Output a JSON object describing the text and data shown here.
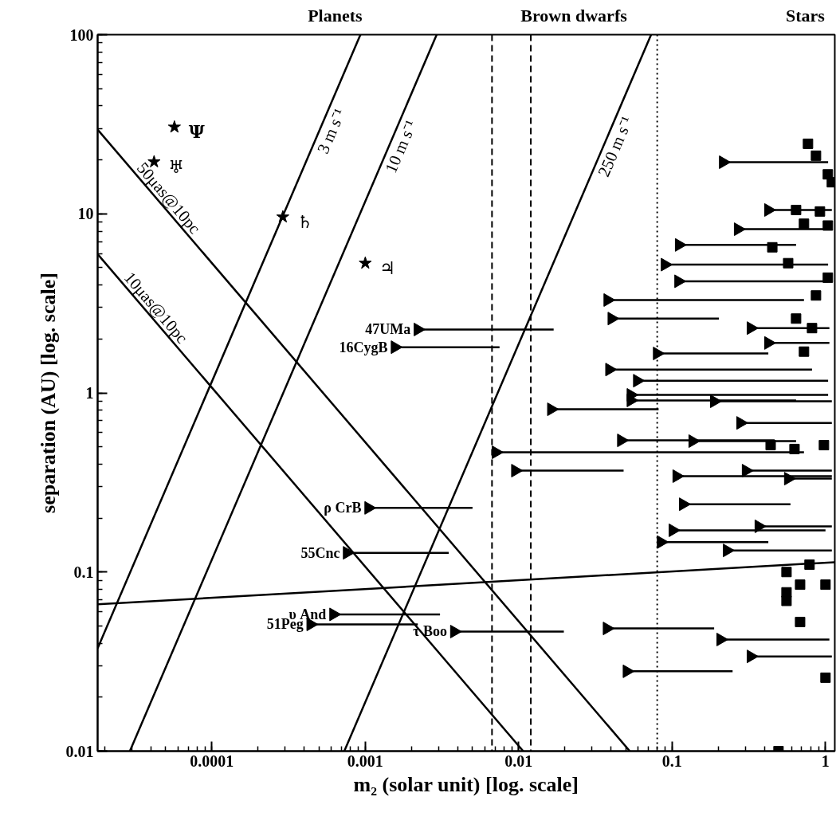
{
  "chart_data": {
    "type": "scatter",
    "xlabel": "m₂ (solar unit) [log. scale]",
    "ylabel": "separation (AU) [log. scale]",
    "log": "xy",
    "grid": false,
    "xlim": [
      1.8e-05,
      1.15
    ],
    "ylim": [
      0.01,
      100
    ],
    "xticks": [
      0.0001,
      0.001,
      0.01,
      0.1,
      1
    ],
    "yticks": [
      0.01,
      0.1,
      1,
      10,
      100
    ],
    "series": [
      {
        "name": "♅",
        "color": "#000000",
        "marker": "star",
        "x": [
          4.2e-05
        ],
        "values": [
          19.5
        ]
      },
      {
        "name": "Ψ",
        "color": "#000000",
        "marker": "star",
        "x": [
          5.7e-05
        ],
        "values": [
          30.5
        ]
      },
      {
        "name": "♄",
        "color": "#000000",
        "marker": "star",
        "x": [
          0.00029
        ],
        "values": [
          9.6
        ]
      },
      {
        "name": "♃",
        "color": "#000000",
        "marker": "star",
        "x": [
          0.001
        ],
        "values": [
          5.3
        ]
      },
      {
        "name": "3 m s⁻¹",
        "type": "line",
        "color": "#000000",
        "x": [
          1.8e-05,
          0.00093
        ],
        "values": [
          0.0375,
          100
        ]
      },
      {
        "name": "10 m s⁻¹",
        "type": "line",
        "color": "#000000",
        "x": [
          2.92e-05,
          0.00292
        ],
        "values": [
          0.01,
          100
        ]
      },
      {
        "name": "250 m s⁻¹",
        "type": "line",
        "color": "#000000",
        "x": [
          0.00073,
          0.073
        ],
        "values": [
          0.01,
          100
        ]
      },
      {
        "name": "50μas@10pc",
        "type": "line",
        "color": "#000000",
        "x": [
          1.8e-05,
          0.053
        ],
        "values": [
          29.5,
          0.01
        ]
      },
      {
        "name": "10μas@10pc",
        "type": "line",
        "color": "#000000",
        "x": [
          1.8e-05,
          0.0107
        ],
        "values": [
          5.95,
          0.01
        ]
      },
      {
        "type": "line",
        "color": "#000000",
        "x": [
          1.8e-05,
          1.15
        ],
        "values": [
          0.066,
          0.1135
        ]
      },
      {
        "color": "#000000",
        "marker": "triangle",
        "x": [
          0.0022,
          0.00156,
          0.00105,
          0.00076,
          0.00062,
          0.00044,
          0.0038
        ],
        "values": [
          2.26,
          1.8,
          0.228,
          0.128,
          0.058,
          0.051,
          0.0465
        ],
        "xerrors": [
          [
            0.0022,
            0.0169
          ],
          [
            0.00156,
            0.0075
          ],
          [
            0.00105,
            0.005
          ],
          [
            0.00076,
            0.0035
          ],
          [
            0.00062,
            0.00307
          ],
          [
            0.00044,
            0.0022
          ],
          [
            0.0038,
            0.0197
          ]
        ]
      },
      {
        "color": "#000000",
        "marker": "triangle",
        "x": [
          0.215,
          0.424,
          0.269,
          0.111,
          0.0898,
          0.11,
          0.038,
          0.0404,
          0.326,
          0.424,
          0.0798,
          0.039,
          0.0592,
          0.0538,
          0.0163,
          0.0538,
          0.188,
          0.279,
          0.0466,
          0.136,
          0.0071,
          0.0095,
          0.107,
          0.303,
          0.571,
          0.118,
          0.101,
          0.0846,
          0.367,
          0.228,
          0.0376,
          0.207,
          0.326,
          0.0507
        ],
        "values": [
          19.4,
          10.5,
          8.2,
          6.7,
          5.2,
          4.2,
          3.3,
          2.6,
          2.3,
          1.9,
          1.66,
          1.35,
          1.17,
          0.975,
          0.81,
          0.908,
          0.898,
          0.68,
          0.543,
          0.538,
          0.466,
          0.368,
          0.343,
          0.368,
          0.332,
          0.239,
          0.171,
          0.147,
          0.18,
          0.132,
          0.0484,
          0.042,
          0.0338,
          0.0279
        ],
        "xerrors": [
          [
            0.215,
            1.04
          ],
          [
            0.424,
            1.1
          ],
          [
            0.269,
            1.04
          ],
          [
            0.111,
            0.643
          ],
          [
            0.0898,
            1.04
          ],
          [
            0.11,
            1.04
          ],
          [
            0.038,
            0.724
          ],
          [
            0.0404,
            0.202
          ],
          [
            0.326,
            1.06
          ],
          [
            0.424,
            1.06
          ],
          [
            0.0798,
            0.424
          ],
          [
            0.039,
            0.817
          ],
          [
            0.0592,
            1.04
          ],
          [
            0.0538,
            1.04
          ],
          [
            0.0163,
            0.0817
          ],
          [
            0.0538,
            0.643
          ],
          [
            0.188,
            1.1
          ],
          [
            0.279,
            1.1
          ],
          [
            0.0466,
            0.466
          ],
          [
            0.136,
            0.643
          ],
          [
            0.0071,
            0.724
          ],
          [
            0.0095,
            0.0483
          ],
          [
            0.107,
            1.1
          ],
          [
            0.303,
            1.1
          ],
          [
            0.571,
            1.1
          ],
          [
            0.118,
            0.591
          ],
          [
            0.101,
            1.0
          ],
          [
            0.0846,
            0.424
          ],
          [
            0.367,
            1.1
          ],
          [
            0.228,
            1.1
          ],
          [
            0.0376,
            0.188
          ],
          [
            0.207,
            1.06
          ],
          [
            0.326,
            1.1
          ],
          [
            0.0507,
            0.248
          ]
        ]
      },
      {
        "color": "#000000",
        "marker": "square",
        "x": [
          0.769,
          0.867,
          1.036,
          1.1,
          0.643,
          0.92,
          0.724,
          1.036,
          0.45,
          0.571,
          1.036,
          0.867,
          0.643,
          0.817,
          0.724,
          0.439,
          0.628,
          0.977,
          0.557,
          0.557,
          0.557,
          0.787,
          0.683,
          1.0,
          0.683,
          1.0,
          0.494
        ],
        "values": [
          24.6,
          21.1,
          16.6,
          15.0,
          10.5,
          10.3,
          8.8,
          8.6,
          6.5,
          5.3,
          4.4,
          3.5,
          2.6,
          2.3,
          1.7,
          0.511,
          0.486,
          0.511,
          0.1,
          0.077,
          0.069,
          0.11,
          0.085,
          0.085,
          0.0526,
          0.0257,
          0.01
        ]
      }
    ],
    "ref_lines": [
      {
        "axis": "x",
        "value": 0.0067,
        "line_style": "dashed"
      },
      {
        "axis": "x",
        "value": 0.012,
        "line_style": "dashed"
      },
      {
        "axis": "x",
        "value": 0.08,
        "line_style": "dotted"
      }
    ],
    "annotations": [
      "Planets",
      "Brown dwarfs",
      "Stars",
      {
        "text": "47UMa",
        "x": 0.0022,
        "y": 2.26
      },
      {
        "text": "16CygB",
        "x": 0.00156,
        "y": 1.8
      },
      {
        "text": "ρ CrB",
        "x": 0.00105,
        "y": 0.228
      },
      {
        "text": "55Cnc",
        "x": 0.00076,
        "y": 0.128
      },
      {
        "text": "υ And",
        "x": 0.00062,
        "y": 0.058
      },
      {
        "text": "51Peg",
        "x": 0.00044,
        "y": 0.051
      },
      {
        "text": "τ Boo",
        "x": 0.0038,
        "y": 0.0465
      }
    ]
  }
}
